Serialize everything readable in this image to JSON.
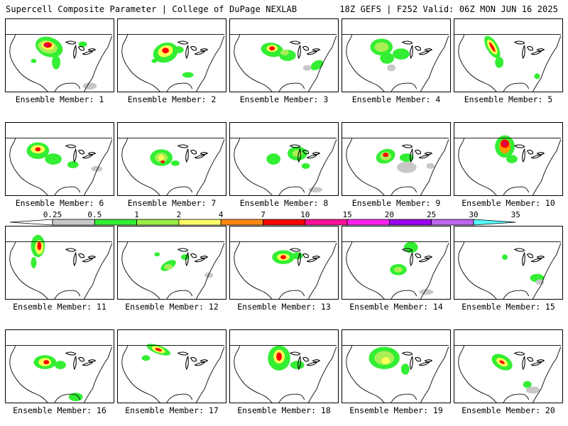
{
  "header": {
    "left_title": "Supercell Composite Parameter | College of DuPage NEXLAB",
    "right_title": "18Z GEFS | F252 Valid: 06Z MON JUN 16 2025"
  },
  "colorbar": {
    "ticks": [
      "0.25",
      "0.5",
      "1",
      "2",
      "4",
      "7",
      "10",
      "15",
      "20",
      "25",
      "30",
      "35"
    ],
    "colors": [
      "#c8c8c8",
      "#33ee33",
      "#99ee44",
      "#ffff66",
      "#ff8811",
      "#ff0000",
      "#ff1199",
      "#ff22ee",
      "#9900ee",
      "#bb66ee",
      "#55ffff"
    ]
  },
  "field_colors": {
    "low": "#c8c8c8",
    "green": "#33ee33",
    "light_green": "#aaee55",
    "yellow": "#ffff55",
    "orange": "#ff9900",
    "red": "#ff0000",
    "magenta": "#cc0066"
  },
  "members": [
    {
      "label": "Ensemble Member: 1"
    },
    {
      "label": "Ensemble Member: 2"
    },
    {
      "label": "Ensemble Member: 3"
    },
    {
      "label": "Ensemble Member: 4"
    },
    {
      "label": "Ensemble Member: 5"
    },
    {
      "label": "Ensemble Member: 6"
    },
    {
      "label": "Ensemble Member: 7"
    },
    {
      "label": "Ensemble Member: 8"
    },
    {
      "label": "Ensemble Member: 9"
    },
    {
      "label": "Ensemble Member: 10"
    },
    {
      "label": "Ensemble Member: 11"
    },
    {
      "label": "Ensemble Member: 12"
    },
    {
      "label": "Ensemble Member: 13"
    },
    {
      "label": "Ensemble Member: 14"
    },
    {
      "label": "Ensemble Member: 15"
    },
    {
      "label": "Ensemble Member: 16"
    },
    {
      "label": "Ensemble Member: 17"
    },
    {
      "label": "Ensemble Member: 18"
    },
    {
      "label": "Ensemble Member: 19"
    },
    {
      "label": "Ensemble Member: 20"
    }
  ]
}
